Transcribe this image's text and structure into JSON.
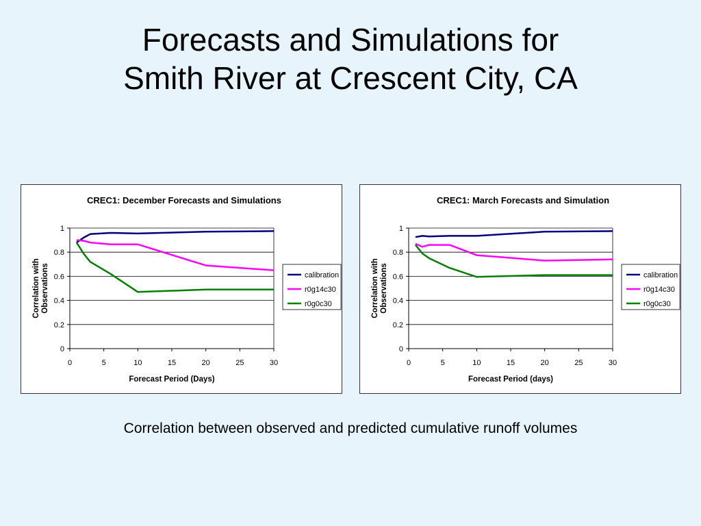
{
  "slide": {
    "title_line1": "Forecasts and Simulations for",
    "title_line2": "Smith River at Crescent City, CA",
    "caption": "Correlation between observed and predicted cumulative runoff volumes"
  },
  "chart_data": [
    {
      "type": "line",
      "title": "CREC1:  December Forecasts and Simulations",
      "xlabel": "Forecast Period (Days)",
      "ylabel": "Correlation with Observations",
      "xlim": [
        0,
        30
      ],
      "ylim": [
        0,
        1
      ],
      "x_ticks": [
        0,
        5,
        10,
        15,
        20,
        25,
        30
      ],
      "y_ticks": [
        0,
        0.2,
        0.4,
        0.6,
        0.8,
        1
      ],
      "grid": "horizontal",
      "legend": "right",
      "series": [
        {
          "name": "calibration",
          "color": "#000080",
          "x": [
            1,
            2,
            3,
            6,
            10,
            20,
            30
          ],
          "y": [
            0.88,
            0.92,
            0.95,
            0.96,
            0.955,
            0.97,
            0.975
          ]
        },
        {
          "name": "r0g14c30",
          "color": "#ff00ff",
          "x": [
            1,
            2,
            3,
            6,
            10,
            20,
            30
          ],
          "y": [
            0.9,
            0.895,
            0.88,
            0.865,
            0.865,
            0.69,
            0.65
          ]
        },
        {
          "name": "r0g0c30",
          "color": "#008000",
          "x": [
            1,
            2,
            3,
            6,
            10,
            20,
            30
          ],
          "y": [
            0.88,
            0.79,
            0.72,
            0.62,
            0.47,
            0.49,
            0.49
          ]
        }
      ]
    },
    {
      "type": "line",
      "title": "CREC1:  March Forecasts and Simulation",
      "xlabel": "Forecast Period (days)",
      "ylabel": "Correlation with Observations",
      "xlim": [
        0,
        30
      ],
      "ylim": [
        0,
        1
      ],
      "x_ticks": [
        0,
        5,
        10,
        15,
        20,
        25,
        30
      ],
      "y_ticks": [
        0,
        0.2,
        0.4,
        0.6,
        0.8,
        1
      ],
      "grid": "horizontal",
      "legend": "right",
      "series": [
        {
          "name": "calibration",
          "color": "#000080",
          "x": [
            1,
            2,
            3,
            6,
            10,
            20,
            30
          ],
          "y": [
            0.925,
            0.935,
            0.93,
            0.935,
            0.935,
            0.97,
            0.975
          ]
        },
        {
          "name": "r0g14c30",
          "color": "#ff00ff",
          "x": [
            1,
            2,
            3,
            6,
            10,
            20,
            30
          ],
          "y": [
            0.87,
            0.845,
            0.86,
            0.86,
            0.775,
            0.73,
            0.74
          ]
        },
        {
          "name": "r0g0c30",
          "color": "#008000",
          "x": [
            1,
            2,
            3,
            6,
            10,
            20,
            30
          ],
          "y": [
            0.86,
            0.79,
            0.75,
            0.67,
            0.595,
            0.61,
            0.61
          ]
        }
      ]
    }
  ]
}
